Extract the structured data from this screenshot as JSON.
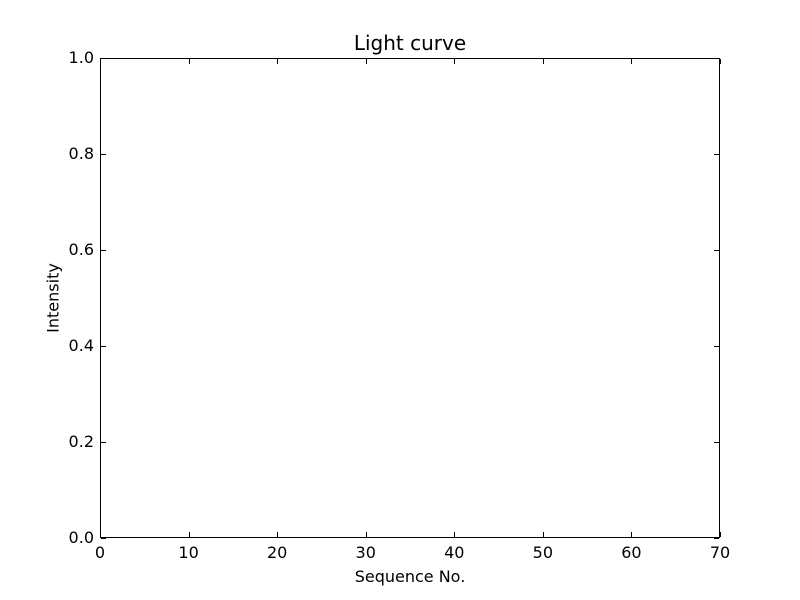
{
  "figure": {
    "background": "#ffffff",
    "foreground": "#000000"
  },
  "chart_data": {
    "type": "line",
    "title": "Light curve",
    "xlabel": "Sequence No.",
    "ylabel": "Intensity",
    "xlim": [
      0,
      70
    ],
    "ylim": [
      0.0,
      1.0
    ],
    "x_ticks": [
      0,
      10,
      20,
      30,
      40,
      50,
      60,
      70
    ],
    "y_tick_labels": [
      "0.0",
      "0.2",
      "0.4",
      "0.6",
      "0.8",
      "1.0"
    ],
    "grid": false,
    "legend": null,
    "series": []
  }
}
